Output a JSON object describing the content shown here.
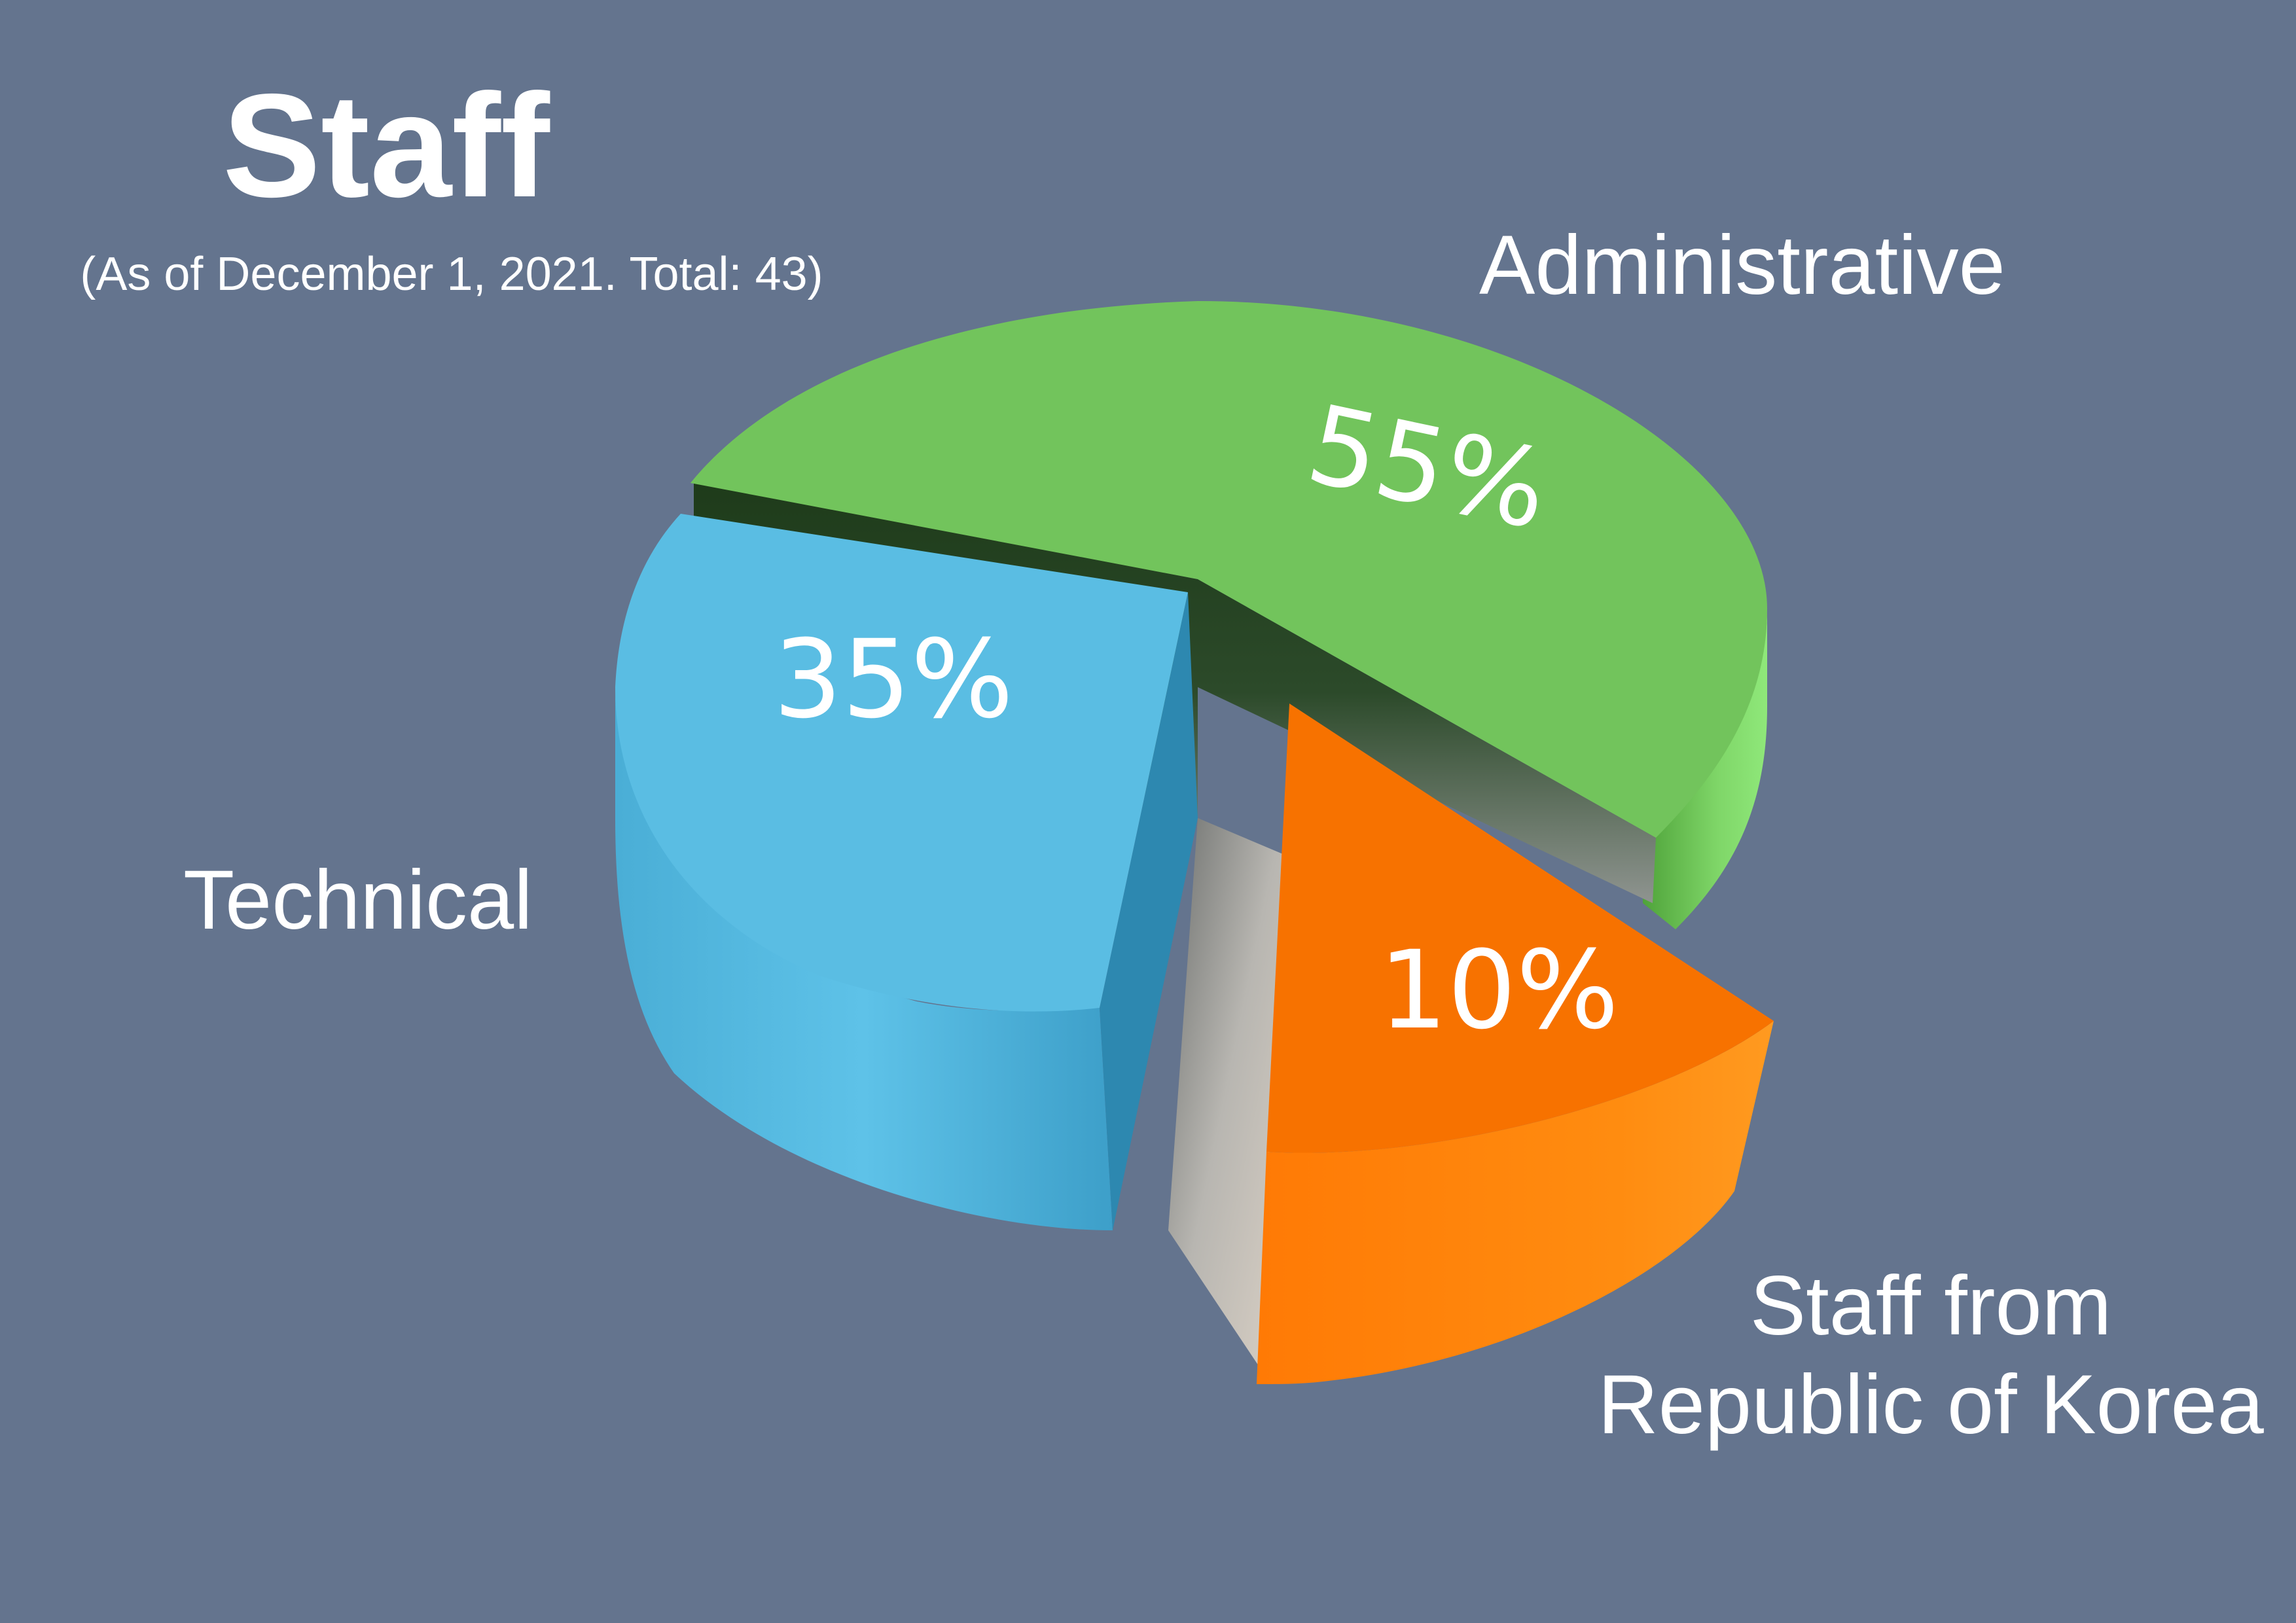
{
  "chart_data": {
    "type": "pie",
    "title": "Staff",
    "subtitle": "(As of December 1, 2021. Total: 43)",
    "slices": [
      {
        "label": "Administrative",
        "value": 55,
        "value_label": "55%",
        "color": "#72c45c"
      },
      {
        "label": "Technical",
        "value": 35,
        "value_label": "35%",
        "color": "#5abde3"
      },
      {
        "label_lines": [
          "Staff from",
          "Republic of Korea"
        ],
        "value": 10,
        "value_label": "10%",
        "color": "#f77200"
      }
    ],
    "style": "3d-exploded"
  },
  "background_color": "#64748e"
}
